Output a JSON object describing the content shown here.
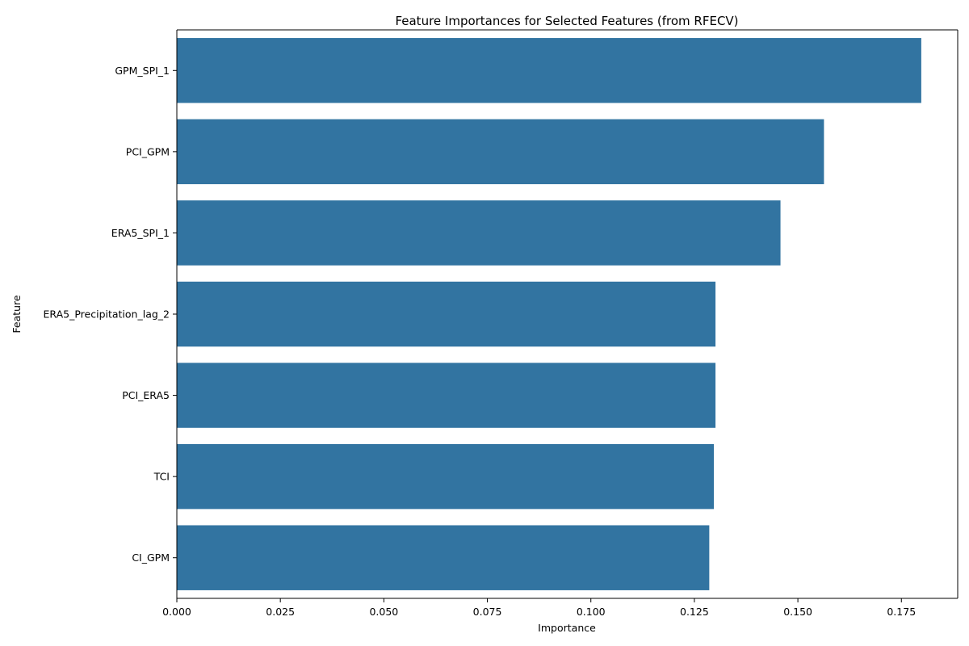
{
  "chart_data": {
    "type": "bar",
    "orientation": "horizontal",
    "title": "Feature Importances for Selected Features (from RFECV)",
    "xlabel": "Importance",
    "ylabel": "Feature",
    "categories": [
      "GPM_SPI_1",
      "PCI_GPM",
      "ERA5_SPI_1",
      "ERA5_Precipitation_lag_2",
      "PCI_ERA5",
      "TCI",
      "CI_GPM"
    ],
    "values": [
      0.1798,
      0.1563,
      0.1458,
      0.1301,
      0.1301,
      0.1297,
      0.1286
    ],
    "xlim": [
      0,
      0.1886
    ],
    "xticks": [
      0.0,
      0.025,
      0.05,
      0.075,
      0.1,
      0.125,
      0.15,
      0.175
    ],
    "xtick_labels": [
      "0.000",
      "0.025",
      "0.050",
      "0.075",
      "0.100",
      "0.125",
      "0.150",
      "0.175"
    ],
    "bar_color": "#3274a1",
    "grid": false,
    "legend": "none"
  }
}
